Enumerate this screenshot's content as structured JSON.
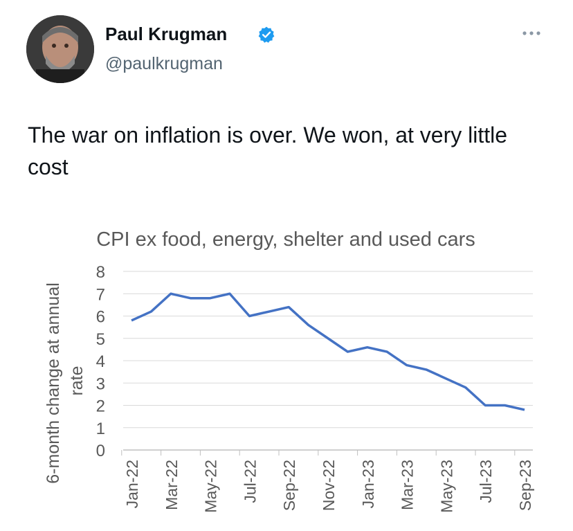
{
  "tweet": {
    "author_name": "Paul Krugman",
    "handle": "@paulkrugman",
    "verified": true,
    "text": "The war on inflation is over. We won, at very little cost",
    "more_icon": "more-horizontal-icon",
    "verified_icon": "verified-badge-icon",
    "accent_color": "#1d9bf0"
  },
  "chart_data": {
    "type": "line",
    "title": "CPI ex food, energy, shelter and used cars",
    "ylabel": "6-month change at annual rate",
    "xlabel": "",
    "ylim": [
      0,
      8
    ],
    "yticks": [
      0,
      1,
      2,
      3,
      4,
      5,
      6,
      7,
      8
    ],
    "grid": true,
    "legend": false,
    "line_color": "#4472c4",
    "x_tick_labels": [
      "Jan-22",
      "Mar-22",
      "May-22",
      "Jul-22",
      "Sep-22",
      "Nov-22",
      "Jan-23",
      "Mar-23",
      "May-23",
      "Jul-23",
      "Sep-23"
    ],
    "x": [
      "Jan-22",
      "Feb-22",
      "Mar-22",
      "Apr-22",
      "May-22",
      "Jun-22",
      "Jul-22",
      "Aug-22",
      "Sep-22",
      "Oct-22",
      "Nov-22",
      "Dec-22",
      "Jan-23",
      "Feb-23",
      "Mar-23",
      "Apr-23",
      "May-23",
      "Jun-23",
      "Jul-23",
      "Aug-23",
      "Sep-23"
    ],
    "series": [
      {
        "values": [
          5.8,
          6.2,
          7.0,
          6.8,
          6.8,
          7.0,
          6.0,
          6.2,
          6.4,
          5.6,
          5.0,
          4.4,
          4.6,
          4.4,
          3.8,
          3.6,
          3.2,
          2.8,
          2.0,
          2.0,
          1.8
        ]
      }
    ]
  }
}
